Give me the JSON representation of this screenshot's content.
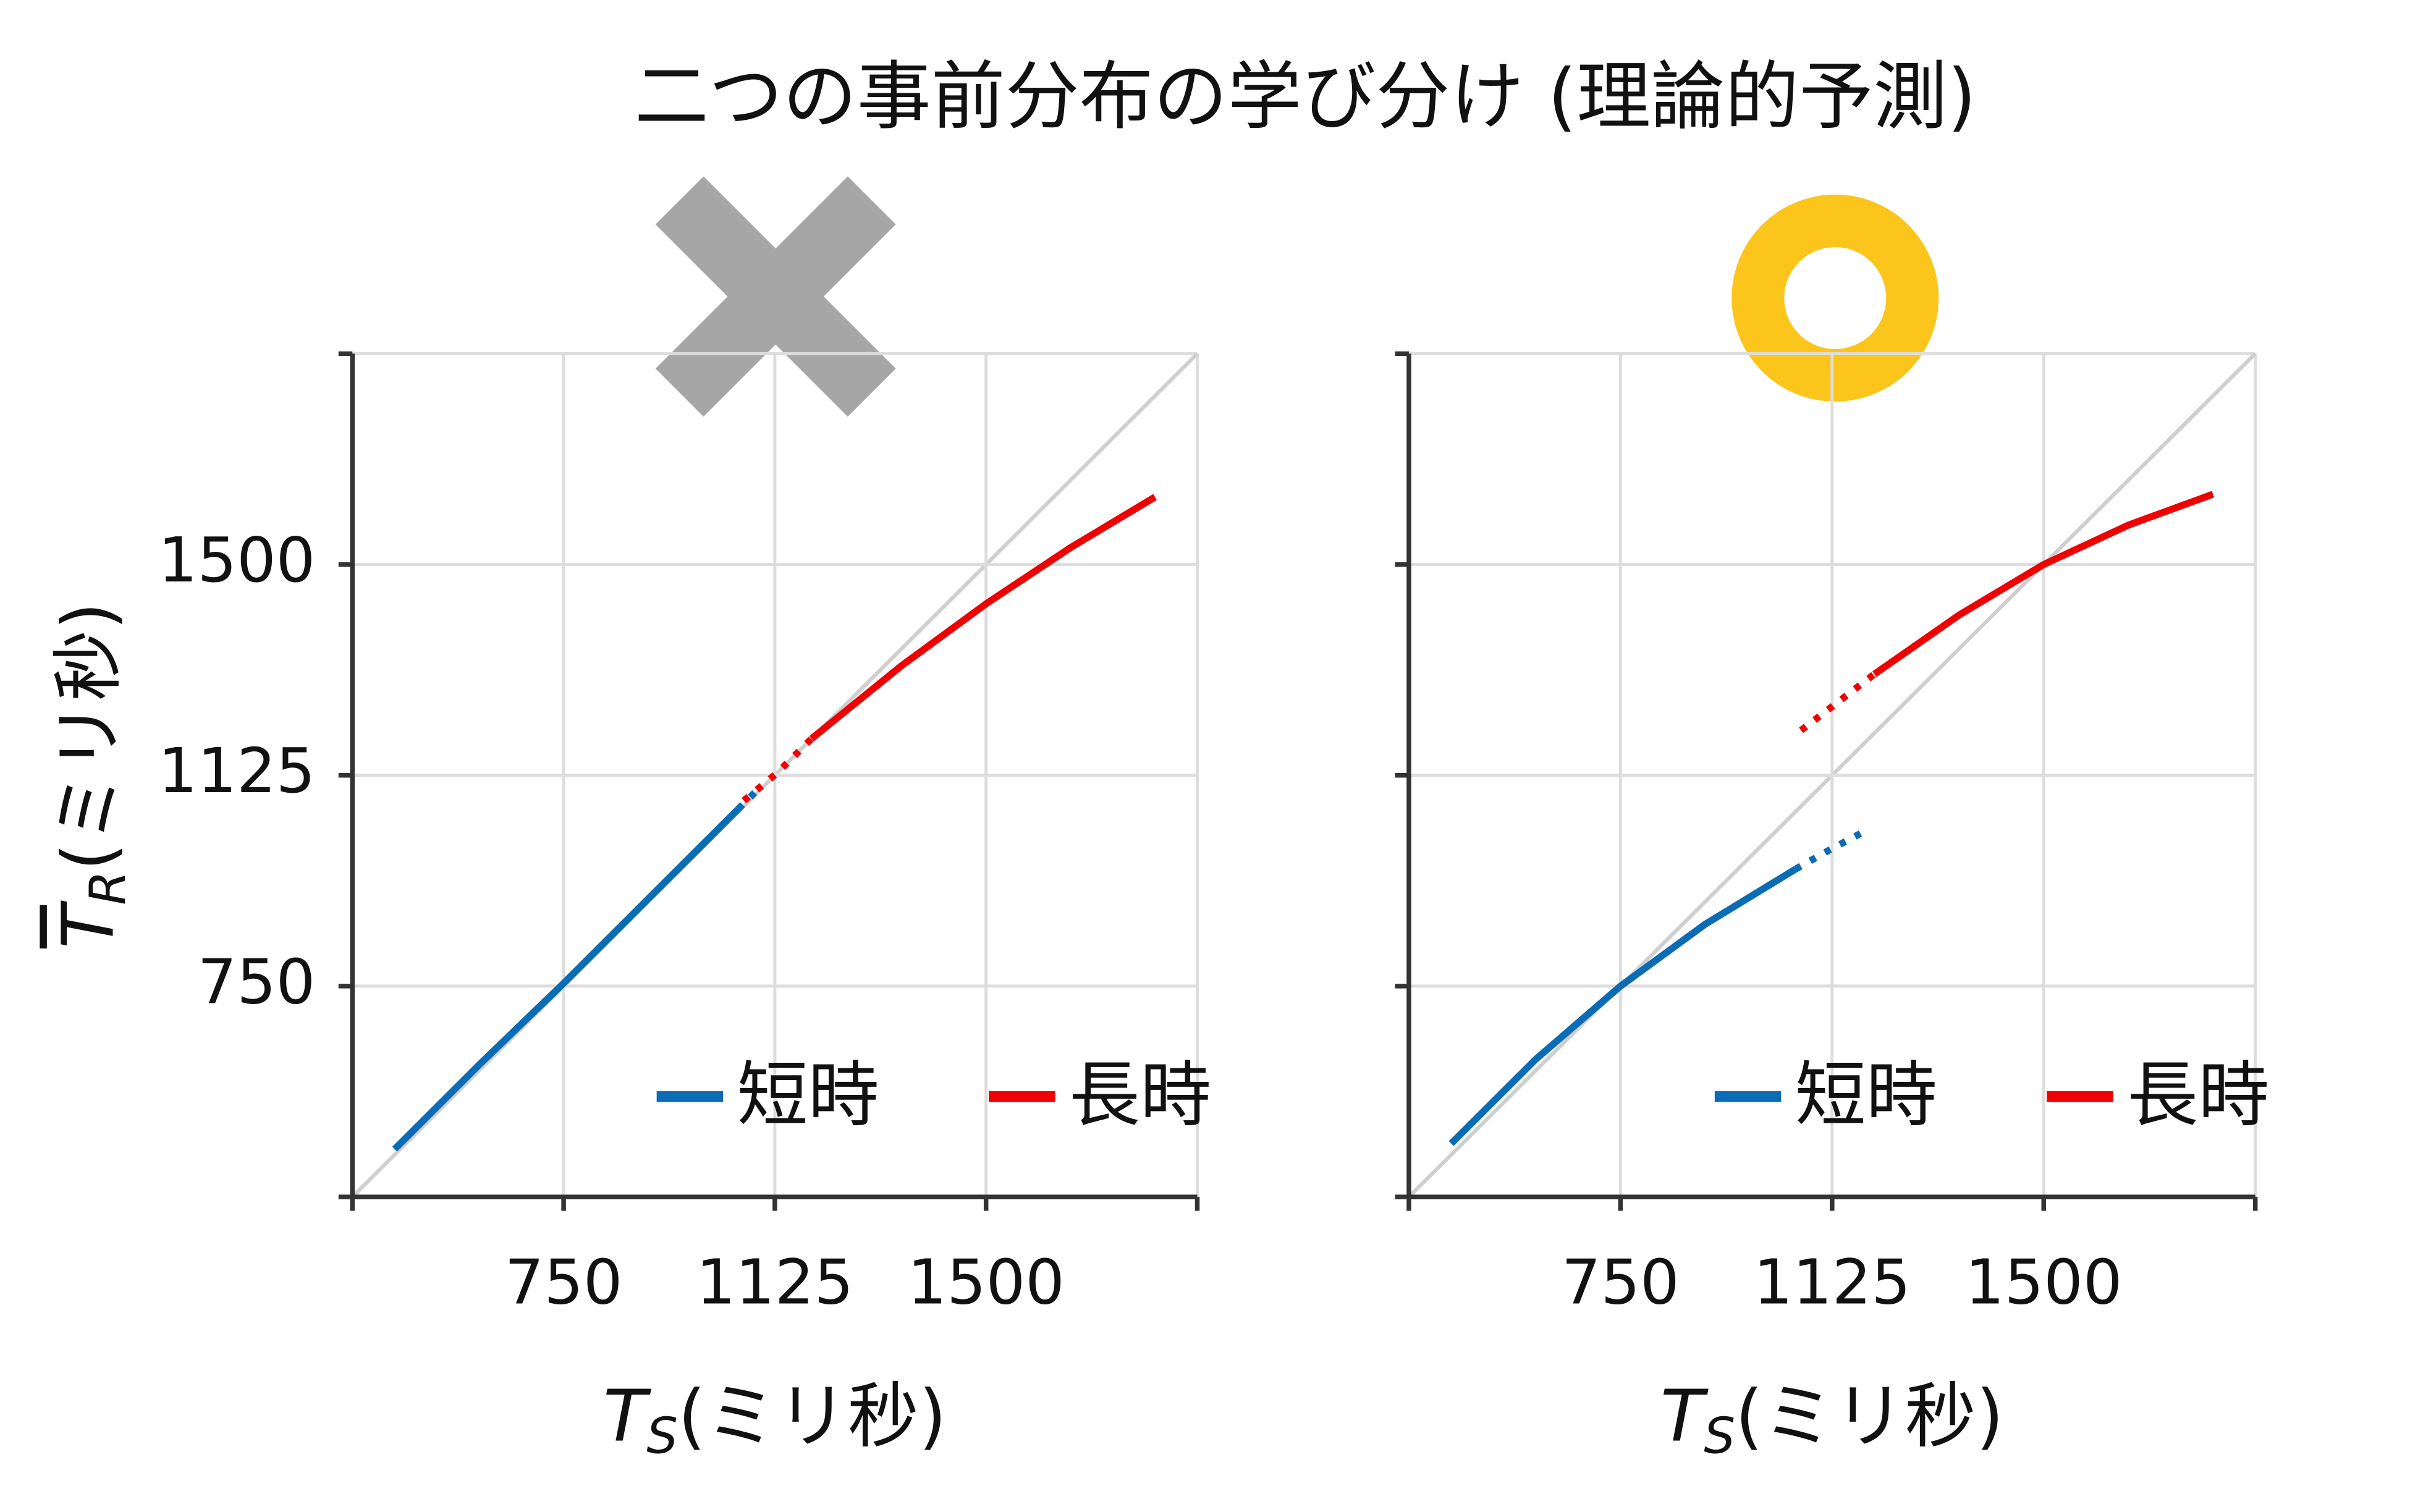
{
  "title": "二つの事前分布の学び分け (理論的予測)",
  "chart_data": [
    {
      "type": "line",
      "xlabel": {
        "symbol": "T",
        "subscript": "S",
        "unit": "(ミリ秒)"
      },
      "ylabel": {
        "symbol": "T",
        "subscript": "R",
        "unit": "(ミリ秒)"
      },
      "xlim": [
        375,
        1875
      ],
      "ylim": [
        375,
        1875
      ],
      "xticks": [
        750,
        1125,
        1500
      ],
      "yticks": [
        750,
        1125,
        1500
      ],
      "show_ytick_labels": true,
      "grid": true,
      "legend": "lower right",
      "series": [
        {
          "name": "短時",
          "color": "#0a6cb4",
          "solid_x": [
            450,
            600,
            750,
            900,
            1060
          ],
          "solid_values": [
            460,
            610,
            755,
            905,
            1065
          ],
          "dotted_x": [
            1060,
            1100
          ],
          "dotted_values": [
            1065,
            1105
          ]
        },
        {
          "name": "長時",
          "color": "#f00000",
          "solid_x": [
            1190,
            1350,
            1500,
            1650,
            1800
          ],
          "solid_values": [
            1190,
            1320,
            1430,
            1530,
            1620
          ],
          "dotted_x": [
            1070,
            1130,
            1190
          ],
          "dotted_values": [
            1080,
            1130,
            1190
          ]
        }
      ]
    },
    {
      "type": "line",
      "xlabel": {
        "symbol": "T",
        "subscript": "S",
        "unit": "(ミリ秒)"
      },
      "xlim": [
        375,
        1875
      ],
      "ylim": [
        375,
        1875
      ],
      "xticks": [
        750,
        1125,
        1500
      ],
      "yticks": [
        750,
        1125,
        1500
      ],
      "show_ytick_labels": false,
      "grid": true,
      "legend": "lower right",
      "series": [
        {
          "name": "短時",
          "color": "#0a6cb4",
          "solid_x": [
            450,
            600,
            750,
            900,
            1060
          ],
          "solid_values": [
            470,
            620,
            750,
            860,
            958
          ],
          "dotted_x": [
            1060,
            1120,
            1180
          ],
          "dotted_values": [
            958,
            992,
            1024
          ]
        },
        {
          "name": "長時",
          "color": "#f00000",
          "solid_x": [
            1200,
            1350,
            1500,
            1650,
            1800
          ],
          "solid_values": [
            1305,
            1410,
            1500,
            1570,
            1625
          ],
          "dotted_x": [
            1070,
            1135,
            1200
          ],
          "dotted_values": [
            1205,
            1255,
            1305
          ]
        }
      ]
    }
  ]
}
